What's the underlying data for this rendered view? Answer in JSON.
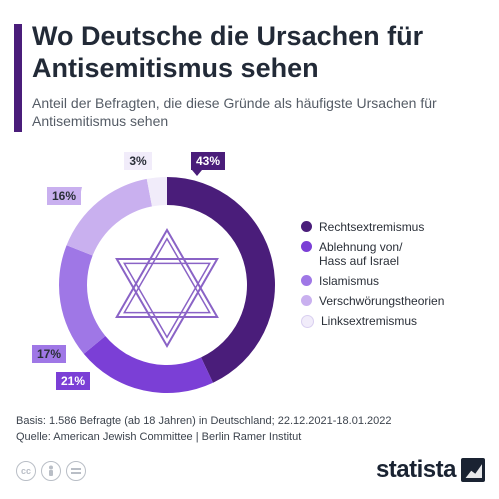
{
  "header": {
    "title": "Wo Deutsche die Ursachen für Antisemitismus sehen",
    "subtitle": "Anteil der Befragten, die diese Gründe als häufigste Ursachen für Antisemitismus sehen"
  },
  "chart_data": {
    "type": "pie",
    "variant": "donut",
    "title": "Wo Deutsche die Ursachen für Antisemitismus sehen",
    "categories": [
      "Rechtsextremismus",
      "Ablehnung von/\nHass auf Israel",
      "Islamismus",
      "Verschwörungstheorien",
      "Linksextremismus"
    ],
    "values": [
      43,
      21,
      17,
      16,
      3
    ],
    "value_labels": [
      "43%",
      "21%",
      "17%",
      "16%",
      "3%"
    ],
    "colors": [
      "#4a1d7a",
      "#7b3fd6",
      "#9f77e6",
      "#c9b0ef",
      "#f1ecfa"
    ],
    "legend_position": "right",
    "center_icon": "star-of-david-icon"
  },
  "footer": {
    "basis": "Basis: 1.586 Befragte (ab 18 Jahren) in Deutschland; 22.12.2021-18.01.2022",
    "source": "Quelle: American Jewish Committee | Berlin Ramer Institut"
  },
  "icons": {
    "cc": "cc-icon",
    "by": "person-icon",
    "nd": "equals-icon",
    "logo": "statista-logo-icon"
  },
  "brand": {
    "logo_text": "statista",
    "accent_color": "#4a1d7a",
    "text_color": "#222a37"
  }
}
